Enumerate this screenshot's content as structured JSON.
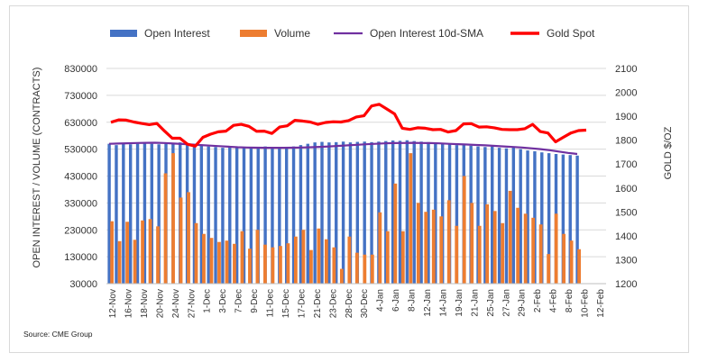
{
  "chart_data": {
    "type": "bar",
    "legend": {
      "placement": "top",
      "entries": [
        {
          "label": "Open Interest",
          "kind": "bar",
          "color": "#4472c4"
        },
        {
          "label": "Volume",
          "kind": "bar",
          "color": "#ed7d31"
        },
        {
          "label": "Open Interest 10d-SMA",
          "kind": "line",
          "color": "#7030a0"
        },
        {
          "label": "Gold Spot",
          "kind": "line",
          "color": "#ff0000"
        }
      ]
    },
    "ylabel_left": "OPEN INTEREST / VOLUME (CONTRACTS)",
    "ylabel_right": "GOLD $/OZ",
    "ylim_left": [
      30000,
      830000
    ],
    "ylim_right": [
      1200,
      2100
    ],
    "yticks_left": [
      "30000",
      "130000",
      "230000",
      "330000",
      "430000",
      "530000",
      "630000",
      "730000",
      "830000"
    ],
    "yticks_right": [
      "1200",
      "1300",
      "1400",
      "1500",
      "1600",
      "1700",
      "1800",
      "1900",
      "2000",
      "2100"
    ],
    "x_tick_labels": [
      "12-Nov",
      "16-Nov",
      "18-Nov",
      "20-Nov",
      "24-Nov",
      "27-Nov",
      "1-Dec",
      "3-Dec",
      "7-Dec",
      "9-Dec",
      "11-Dec",
      "15-Dec",
      "17-Dec",
      "21-Dec",
      "23-Dec",
      "28-Dec",
      "30-Dec",
      "4-Jan",
      "6-Jan",
      "8-Jan",
      "12-Jan",
      "14-Jan",
      "19-Jan",
      "21-Jan",
      "25-Jan",
      "27-Jan",
      "29-Jan",
      "2-Feb",
      "4-Feb",
      "8-Feb",
      "10-Feb",
      "12-Feb"
    ],
    "source": "Source: CME Group",
    "open_interest": [
      550000,
      545000,
      550000,
      548000,
      550000,
      552000,
      550000,
      548000,
      550000,
      552000,
      555000,
      548000,
      545000,
      543000,
      540000,
      538000,
      535000,
      537000,
      540000,
      538000,
      536000,
      538000,
      540000,
      538000,
      535000,
      537000,
      540000,
      545000,
      550000,
      555000,
      557000,
      555000,
      556000,
      558000,
      555000,
      557000,
      558000,
      556000,
      558000,
      560000,
      562000,
      561000,
      563000,
      560000,
      558000,
      556000,
      553000,
      550000,
      548000,
      545000,
      547000,
      543000,
      540000,
      538000,
      540000,
      535000,
      533000,
      536000,
      530000,
      525000,
      522000,
      518000,
      515000,
      512000,
      510000,
      508000,
      506000
    ],
    "volume": [
      262000,
      188000,
      260000,
      193000,
      265000,
      270000,
      243000,
      440000,
      515000,
      350000,
      370000,
      255000,
      215000,
      200000,
      185000,
      190000,
      178000,
      225000,
      160000,
      230000,
      175000,
      165000,
      170000,
      180000,
      205000,
      230000,
      155000,
      235000,
      195000,
      165000,
      85000,
      205000,
      145000,
      138000,
      138000,
      295000,
      225000,
      402000,
      225000,
      515000,
      330000,
      297000,
      305000,
      280000,
      340000,
      245000,
      430000,
      330000,
      245000,
      325000,
      300000,
      255000,
      375000,
      312000,
      290000,
      275000,
      250000,
      140000,
      290000,
      215000,
      190000,
      158000
    ],
    "open_interest_10d_sma": [
      550000,
      551000,
      552000,
      553000,
      553500,
      554000,
      553000,
      551000,
      549000,
      547000,
      545000,
      543000,
      541000,
      539000,
      537000,
      536000,
      535500,
      535000,
      535000,
      535000,
      535500,
      536000,
      537000,
      538500,
      540000,
      542000,
      544000,
      546000,
      548000,
      550000,
      551500,
      552500,
      553000,
      553500,
      553000,
      552500,
      551500,
      550000,
      548500,
      547000,
      545500,
      544000,
      542000,
      540000,
      538000,
      536000,
      533000,
      530000,
      526000,
      521000,
      516000,
      512000
    ],
    "gold_spot": [
      1875,
      1885,
      1884,
      1876,
      1870,
      1865,
      1870,
      1838,
      1808,
      1808,
      1783,
      1775,
      1812,
      1825,
      1835,
      1838,
      1862,
      1866,
      1858,
      1837,
      1838,
      1828,
      1855,
      1860,
      1883,
      1880,
      1876,
      1866,
      1874,
      1877,
      1876,
      1882,
      1897,
      1902,
      1943,
      1950,
      1930,
      1910,
      1850,
      1845,
      1852,
      1850,
      1844,
      1845,
      1834,
      1840,
      1868,
      1869,
      1855,
      1856,
      1852,
      1845,
      1844,
      1844,
      1848,
      1866,
      1836,
      1830,
      1793,
      1812,
      1830,
      1840,
      1842
    ]
  }
}
